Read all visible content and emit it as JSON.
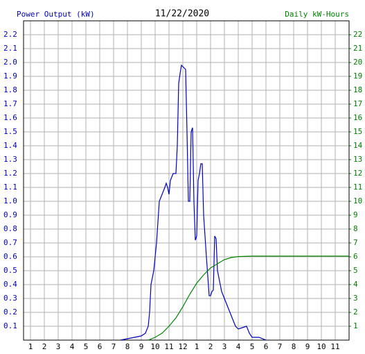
{
  "chart_data": {
    "type": "line",
    "title": "11/22/2020",
    "xlim": [
      0.5,
      24
    ],
    "xticks": [
      1,
      2,
      3,
      4,
      5,
      6,
      7,
      8,
      9,
      10,
      11,
      12,
      {
        "value": 13,
        "label": "1"
      },
      {
        "value": 14,
        "label": "2"
      },
      {
        "value": 15,
        "label": "3"
      },
      {
        "value": 16,
        "label": "4"
      },
      {
        "value": 17,
        "label": "5"
      },
      {
        "value": 18,
        "label": "6"
      },
      {
        "value": 19,
        "label": "7"
      },
      {
        "value": 20,
        "label": "8"
      },
      {
        "value": 21,
        "label": "9"
      },
      {
        "value": 22,
        "label": "10"
      },
      {
        "value": 23,
        "label": "11"
      }
    ],
    "ylim": [
      0,
      2.3
    ],
    "yticks": [
      0.1,
      0.2,
      0.3,
      0.4,
      0.5,
      0.6,
      0.7,
      0.8,
      0.9,
      {
        "value": 1,
        "label": "1.0"
      },
      1.1,
      1.2,
      1.3,
      1.4,
      1.5,
      1.6,
      1.7,
      1.8,
      1.9,
      {
        "value": 2,
        "label": "2.0"
      },
      2.1,
      2.2
    ],
    "y2lim": [
      0,
      23
    ],
    "y2ticks": [
      1,
      2,
      3,
      4,
      5,
      6,
      7,
      8,
      9,
      10,
      11,
      12,
      13,
      14,
      15,
      16,
      17,
      18,
      19,
      20,
      21,
      22
    ],
    "grid": true,
    "series": [
      {
        "name": "Power Output (kW)",
        "color": "#0000c0",
        "x": [
          7.5,
          8,
          8.5,
          9,
          9.3,
          9.5,
          9.6,
          9.7,
          9.9,
          10,
          10.1,
          10.3,
          10.5,
          10.7,
          10.8,
          10.9,
          11,
          11.1,
          11.3,
          11.5,
          11.6,
          11.7,
          11.8,
          11.9,
          12,
          12.2,
          12.3,
          12.4,
          12.5,
          12.6,
          12.7,
          12.8,
          12.9,
          13,
          13.1,
          13.2,
          13.3,
          13.4,
          13.5,
          13.7,
          13.9,
          14,
          14.1,
          14.2,
          14.3,
          14.4,
          14.5,
          14.6,
          14.8,
          15,
          15.2,
          15.4,
          15.6,
          15.8,
          16,
          16.3,
          16.6,
          16.8,
          17,
          17.5,
          18
        ],
        "values": [
          0,
          0.01,
          0.02,
          0.03,
          0.05,
          0.1,
          0.2,
          0.4,
          0.5,
          0.6,
          0.7,
          1.0,
          1.05,
          1.1,
          1.13,
          1.1,
          1.05,
          1.15,
          1.2,
          1.2,
          1.4,
          1.85,
          1.92,
          1.98,
          1.97,
          1.95,
          1.5,
          1.0,
          1.0,
          1.5,
          1.53,
          1.0,
          0.72,
          0.75,
          1.15,
          1.2,
          1.27,
          1.27,
          0.9,
          0.6,
          0.32,
          0.32,
          0.35,
          0.36,
          0.75,
          0.73,
          0.5,
          0.45,
          0.35,
          0.3,
          0.25,
          0.2,
          0.15,
          0.1,
          0.08,
          0.09,
          0.1,
          0.05,
          0.02,
          0.02,
          0
        ]
      },
      {
        "name": "Daily kW-Hours",
        "color": "#008000",
        "axis": "y2",
        "x": [
          9.5,
          10,
          10.5,
          11,
          11.5,
          12,
          12.5,
          13,
          13.5,
          14,
          14.5,
          15,
          15.5,
          16,
          17,
          24
        ],
        "values": [
          0,
          0.2,
          0.5,
          1.0,
          1.6,
          2.4,
          3.3,
          4.1,
          4.7,
          5.2,
          5.5,
          5.8,
          5.95,
          6.02,
          6.05,
          6.05
        ]
      }
    ]
  }
}
